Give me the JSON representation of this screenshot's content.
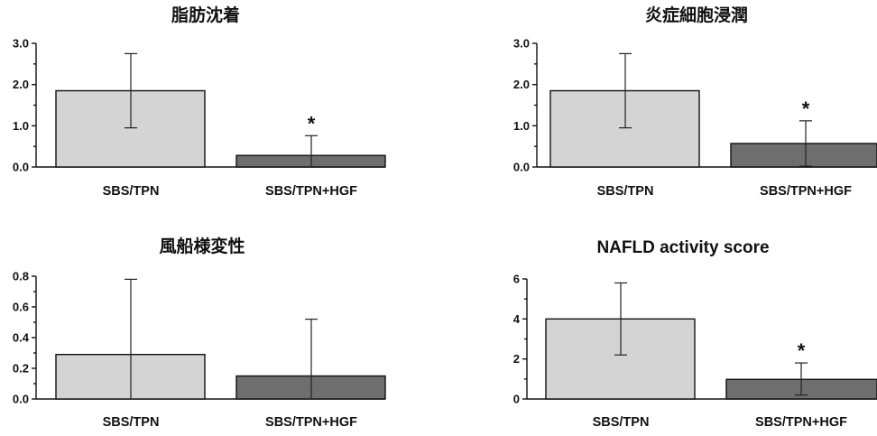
{
  "chart_data": [
    {
      "type": "bar",
      "title": "脂肪沈着",
      "categories": [
        "SBS/TPN",
        "SBS/TPN+HGF"
      ],
      "values": [
        1.85,
        0.28
      ],
      "error_upper": [
        2.75,
        0.76
      ],
      "error_lower": [
        0.95,
        0.0
      ],
      "significance": [
        "",
        "*"
      ],
      "ylim": [
        0,
        3.0
      ],
      "yticks": [
        "0.0",
        "1.0",
        "2.0",
        "3.0"
      ],
      "xlabel": "",
      "ylabel": ""
    },
    {
      "type": "bar",
      "title": "炎症細胞浸潤",
      "categories": [
        "SBS/TPN",
        "SBS/TPN+HGF"
      ],
      "values": [
        1.85,
        0.57
      ],
      "error_upper": [
        2.75,
        1.12
      ],
      "error_lower": [
        0.95,
        0.02
      ],
      "significance": [
        "",
        "*"
      ],
      "ylim": [
        0,
        3.0
      ],
      "yticks": [
        "0.0",
        "1.0",
        "2.0",
        "3.0"
      ],
      "xlabel": "",
      "ylabel": ""
    },
    {
      "type": "bar",
      "title": "風船様変性",
      "categories": [
        "SBS/TPN",
        "SBS/TPN+HGF"
      ],
      "values": [
        0.29,
        0.15
      ],
      "error_upper": [
        0.78,
        0.52
      ],
      "error_lower": [
        0.0,
        0.0
      ],
      "significance": [
        "",
        ""
      ],
      "ylim": [
        0,
        0.8
      ],
      "yticks": [
        "0.0",
        "0.2",
        "0.4",
        "0.6",
        "0.8"
      ],
      "xlabel": "",
      "ylabel": ""
    },
    {
      "type": "bar",
      "title": "NAFLD activity score",
      "categories": [
        "SBS/TPN",
        "SBS/TPN+HGF"
      ],
      "values": [
        4.0,
        0.98
      ],
      "error_upper": [
        5.8,
        1.8
      ],
      "error_lower": [
        2.2,
        0.2
      ],
      "significance": [
        "",
        "*"
      ],
      "ylim": [
        0,
        6
      ],
      "yticks": [
        "0",
        "2",
        "4",
        "6"
      ],
      "xlabel": "",
      "ylabel": ""
    }
  ],
  "colors": {
    "bar1": "#d4d4d4",
    "bar2": "#6e6e6e",
    "axis": "#111111"
  }
}
